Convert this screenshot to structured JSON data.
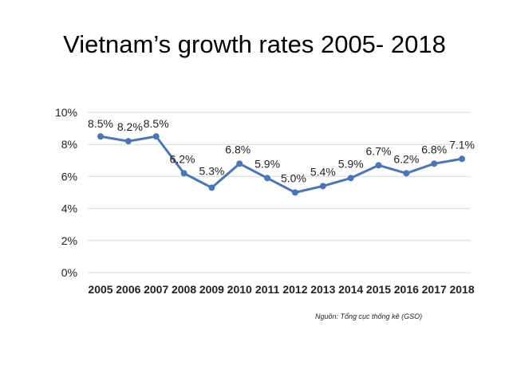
{
  "slide": {
    "title": "Vietnam’s growth rates 2005- 2018",
    "source": "Nguồn: Tổng cục thống kê (GSO)"
  },
  "chart_data": {
    "type": "line",
    "title": "",
    "xlabel": "",
    "ylabel": "",
    "categories": [
      "2005",
      "2006",
      "2007",
      "2008",
      "2009",
      "2010",
      "2011",
      "2012",
      "2013",
      "2014",
      "2015",
      "2016",
      "2017",
      "2018"
    ],
    "series": [
      {
        "values": [
          8.5,
          8.2,
          8.5,
          6.2,
          5.3,
          6.8,
          5.9,
          5.0,
          5.4,
          5.9,
          6.7,
          6.2,
          6.8,
          7.1
        ],
        "labels": [
          "8.5%",
          "8.2%",
          "8.5%",
          "6.2%",
          "5.3%",
          "6.8%",
          "5.9%",
          "5.0%",
          "5.4%",
          "5.9%",
          "6.7%",
          "6.2%",
          "6.8%",
          "7.1%"
        ]
      }
    ],
    "ylim": [
      0,
      10
    ],
    "yticks": [
      0,
      2,
      4,
      6,
      8,
      10
    ],
    "ytick_labels": [
      "0%",
      "2%",
      "4%",
      "6%",
      "8%",
      "10%"
    ],
    "grid": true,
    "legend": "none",
    "colors": {
      "line": "#4a76b8",
      "grid": "#d9d9d9"
    }
  }
}
